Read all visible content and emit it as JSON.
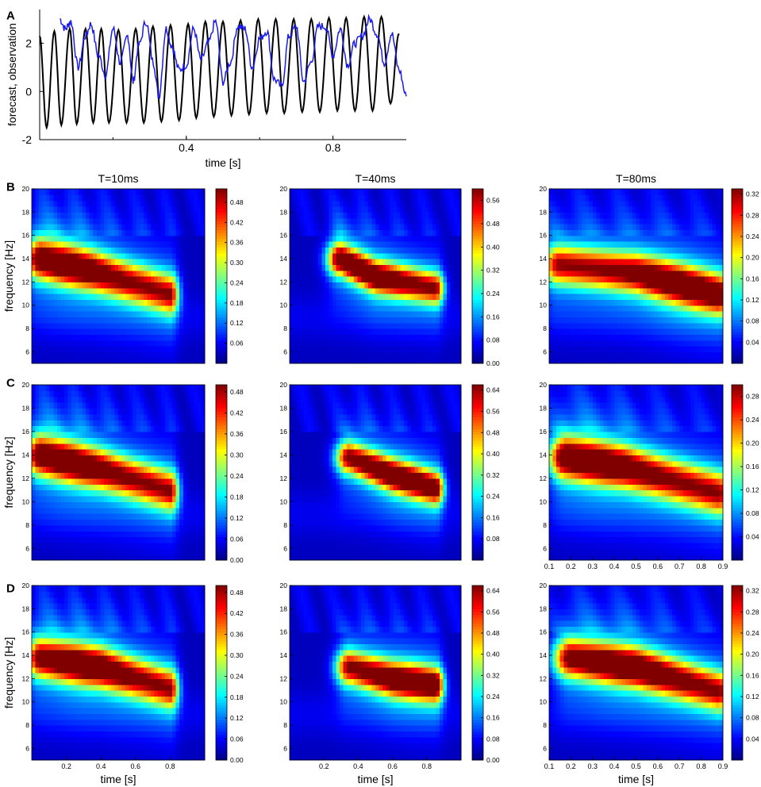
{
  "panel_letters": [
    "A",
    "B",
    "C",
    "D"
  ],
  "colors": {
    "forecast": "#000000",
    "observation": "#1a1aee"
  },
  "chart_data": [
    {
      "id": "A",
      "type": "line",
      "xlabel": "time [s]",
      "ylabel": "forecast, observation",
      "xlim": [
        0.0,
        1.0
      ],
      "ylim": [
        -2,
        3.4
      ],
      "xticks": [
        0.4,
        0.8
      ],
      "xtick_labels": [
        "0.4",
        "0.8"
      ],
      "yticks": [
        -2,
        0,
        2
      ],
      "ytick_labels": [
        "-2",
        "0",
        "2"
      ],
      "grid": false,
      "series": [
        {
          "role": "forecast",
          "color": "#000000",
          "x": [
            0.0,
            0.019,
            0.04,
            0.059,
            0.082,
            0.101,
            0.125,
            0.146,
            0.168,
            0.189,
            0.215,
            0.237,
            0.262,
            0.284,
            0.309,
            0.332,
            0.357,
            0.38,
            0.405,
            0.427,
            0.452,
            0.475,
            0.5,
            0.523,
            0.548,
            0.571,
            0.596,
            0.619,
            0.644,
            0.667,
            0.693,
            0.716,
            0.741,
            0.764,
            0.789,
            0.812,
            0.836,
            0.86,
            0.885,
            0.908,
            0.932,
            0.957,
            0.98
          ],
          "y": [
            2.3,
            -1.5,
            2.5,
            -1.4,
            2.6,
            -1.35,
            2.6,
            -1.3,
            2.6,
            -1.3,
            2.55,
            -1.3,
            2.6,
            -1.3,
            2.7,
            -1.25,
            2.75,
            -1.2,
            2.8,
            -1.1,
            2.9,
            -1.05,
            2.9,
            -1.0,
            2.95,
            -0.95,
            3.0,
            -0.9,
            3.0,
            -0.9,
            3.0,
            -0.85,
            3.0,
            -0.85,
            3.05,
            -0.8,
            3.05,
            -0.8,
            3.1,
            -0.8,
            3.1,
            -0.5,
            2.4
          ]
        },
        {
          "role": "observation",
          "color": "#1a1aee",
          "x": [
            0.055,
            0.07,
            0.085,
            0.105,
            0.125,
            0.14,
            0.16,
            0.18,
            0.2,
            0.22,
            0.24,
            0.255,
            0.27,
            0.29,
            0.31,
            0.325,
            0.345,
            0.36,
            0.38,
            0.4,
            0.42,
            0.44,
            0.46,
            0.48,
            0.5,
            0.52,
            0.54,
            0.56,
            0.58,
            0.6,
            0.62,
            0.64,
            0.66,
            0.68,
            0.7,
            0.72,
            0.74,
            0.76,
            0.78,
            0.8,
            0.82,
            0.84,
            0.86,
            0.88,
            0.9,
            0.92,
            0.94,
            0.96,
            0.98,
            1.0
          ],
          "y": [
            3.0,
            2.6,
            2.9,
            1.0,
            2.3,
            2.8,
            1.5,
            0.7,
            2.6,
            1.2,
            2.3,
            0.4,
            1.9,
            2.9,
            1.2,
            -0.2,
            2.6,
            1.9,
            0.9,
            1.1,
            2.6,
            1.3,
            2.0,
            2.9,
            0.4,
            1.2,
            2.7,
            2.6,
            1.0,
            2.2,
            2.5,
            0.5,
            0.2,
            2.3,
            2.7,
            0.4,
            1.2,
            2.7,
            2.7,
            1.5,
            2.6,
            1.1,
            2.0,
            2.3,
            3.0,
            2.4,
            1.2,
            2.4,
            0.9,
            -0.2
          ]
        }
      ]
    },
    {
      "id": "B1",
      "row": "B",
      "type": "heatmap",
      "title": "T=10ms",
      "ylabel": "frequency [Hz]",
      "xlabel": "",
      "xlim": [
        0.0,
        1.0
      ],
      "ylim": [
        5,
        20
      ],
      "yticks": [
        6,
        8,
        10,
        12,
        14,
        16,
        18,
        20
      ],
      "xticks": [],
      "xtick_labels": [],
      "colorbar_ticks": [
        "0.06",
        "0.12",
        "0.18",
        "0.24",
        "0.30",
        "0.36",
        "0.42",
        "0.48"
      ],
      "zmax": 0.52,
      "ridge": [
        [
          0.05,
          14.0
        ],
        [
          0.35,
          13.0
        ],
        [
          0.8,
          11.0
        ]
      ],
      "ridge_width": 1.6,
      "peak_at": 0.2
    },
    {
      "id": "B2",
      "row": "B",
      "type": "heatmap",
      "title": "T=40ms",
      "xlabel": "",
      "xlim": [
        0.0,
        1.0
      ],
      "ylim": [
        5,
        20
      ],
      "yticks": [
        6,
        8,
        10,
        12,
        14,
        16,
        18,
        20
      ],
      "xticks": [],
      "xtick_labels": [],
      "colorbar_ticks": [
        "0.00",
        "0.08",
        "0.16",
        "0.24",
        "0.32",
        "0.40",
        "0.48",
        "0.56"
      ],
      "zmax": 0.6,
      "ridge": [
        [
          0.3,
          14.0
        ],
        [
          0.5,
          12.5
        ],
        [
          0.85,
          11.5
        ]
      ],
      "ridge_width": 1.3,
      "peak_at": 0.45
    },
    {
      "id": "B3",
      "row": "B",
      "type": "heatmap",
      "title": "T=80ms",
      "xlabel": "",
      "xlim": [
        0.1,
        0.9
      ],
      "ylim": [
        5,
        20
      ],
      "yticks": [
        6,
        8,
        10,
        12,
        14,
        16,
        18,
        20
      ],
      "xticks": [],
      "xtick_labels": [],
      "colorbar_ticks": [
        "0.04",
        "0.08",
        "0.12",
        "0.16",
        "0.20",
        "0.24",
        "0.28",
        "0.32"
      ],
      "zmax": 0.33,
      "ridge": [
        [
          0.15,
          13.5
        ],
        [
          0.5,
          12.8
        ],
        [
          0.88,
          11.0
        ]
      ],
      "ridge_width": 1.6,
      "peak_at": 0.72
    },
    {
      "id": "C1",
      "row": "C",
      "type": "heatmap",
      "ylabel": "frequency [Hz]",
      "xlabel": "",
      "xlim": [
        0.0,
        1.0
      ],
      "ylim": [
        5,
        20
      ],
      "yticks": [
        6,
        8,
        10,
        12,
        14,
        16,
        18,
        20
      ],
      "xticks": [],
      "xtick_labels": [],
      "colorbar_ticks": [
        "0.00",
        "0.06",
        "0.12",
        "0.18",
        "0.24",
        "0.30",
        "0.36",
        "0.42",
        "0.48"
      ],
      "zmax": 0.5,
      "ridge": [
        [
          0.05,
          14.0
        ],
        [
          0.4,
          12.8
        ],
        [
          0.8,
          11.0
        ]
      ],
      "ridge_width": 1.6,
      "peak_at": 0.2
    },
    {
      "id": "C2",
      "row": "C",
      "type": "heatmap",
      "xlabel": "",
      "xlim": [
        0.0,
        1.0
      ],
      "ylim": [
        5,
        20
      ],
      "yticks": [
        6,
        8,
        10,
        12,
        14,
        16,
        18,
        20
      ],
      "xticks": [],
      "xtick_labels": [],
      "colorbar_ticks": [
        "0.08",
        "0.16",
        "0.24",
        "0.32",
        "0.40",
        "0.48",
        "0.56",
        "0.64"
      ],
      "zmax": 0.66,
      "ridge": [
        [
          0.35,
          13.8
        ],
        [
          0.6,
          12.3
        ],
        [
          0.85,
          11.2
        ]
      ],
      "ridge_width": 1.3,
      "peak_at": 0.65
    },
    {
      "id": "C3",
      "row": "C",
      "type": "heatmap",
      "xlabel": "",
      "xlim": [
        0.1,
        0.9
      ],
      "ylim": [
        5,
        20
      ],
      "yticks": [
        6,
        8,
        10,
        12,
        14,
        16,
        18,
        20
      ],
      "xticks": [
        0.1,
        0.2,
        0.3,
        0.4,
        0.5,
        0.6,
        0.7,
        0.8,
        0.9
      ],
      "xtick_labels": [
        "0.1",
        "0.2",
        "0.3",
        "0.4",
        "0.5",
        "0.6",
        "0.7",
        "0.8",
        "0.9"
      ],
      "colorbar_ticks": [
        "0.04",
        "0.08",
        "0.12",
        "0.16",
        "0.20",
        "0.24",
        "0.28"
      ],
      "zmax": 0.3,
      "ridge": [
        [
          0.18,
          13.8
        ],
        [
          0.45,
          13.0
        ],
        [
          0.88,
          10.8
        ]
      ],
      "ridge_width": 1.7,
      "peak_at": 0.3
    },
    {
      "id": "D1",
      "row": "D",
      "type": "heatmap",
      "ylabel": "frequency [Hz]",
      "xlabel": "time [s]",
      "xlim": [
        0.0,
        1.0
      ],
      "ylim": [
        5,
        20
      ],
      "yticks": [
        6,
        8,
        10,
        12,
        14,
        16,
        18,
        20
      ],
      "xticks": [
        0.2,
        0.4,
        0.6,
        0.8
      ],
      "xtick_labels": [
        "0.2",
        "0.4",
        "0.6",
        "0.8"
      ],
      "colorbar_ticks": [
        "0.00",
        "0.06",
        "0.12",
        "0.18",
        "0.24",
        "0.30",
        "0.36",
        "0.42",
        "0.48"
      ],
      "zmax": 0.5,
      "ridge": [
        [
          0.05,
          13.8
        ],
        [
          0.4,
          13.0
        ],
        [
          0.8,
          11.2
        ]
      ],
      "ridge_width": 1.6,
      "peak_at": 0.3
    },
    {
      "id": "D2",
      "row": "D",
      "type": "heatmap",
      "xlabel": "time [s]",
      "xlim": [
        0.0,
        1.0
      ],
      "ylim": [
        5,
        20
      ],
      "yticks": [
        6,
        8,
        10,
        12,
        14,
        16,
        18,
        20
      ],
      "xticks": [
        0.2,
        0.4,
        0.6,
        0.8
      ],
      "xtick_labels": [
        "0.2",
        "0.4",
        "0.6",
        "0.8"
      ],
      "colorbar_ticks": [
        "0.00",
        "0.08",
        "0.16",
        "0.24",
        "0.32",
        "0.40",
        "0.48",
        "0.56",
        "0.64"
      ],
      "zmax": 0.66,
      "ridge": [
        [
          0.35,
          13.0
        ],
        [
          0.6,
          12.0
        ],
        [
          0.85,
          11.5
        ]
      ],
      "ridge_width": 1.4,
      "peak_at": 0.7
    },
    {
      "id": "D3",
      "row": "D",
      "type": "heatmap",
      "xlabel": "time [s]",
      "xlim": [
        0.1,
        0.9
      ],
      "ylim": [
        5,
        20
      ],
      "yticks": [
        6,
        8,
        10,
        12,
        14,
        16,
        18,
        20
      ],
      "xticks": [
        0.1,
        0.2,
        0.3,
        0.4,
        0.5,
        0.6,
        0.7,
        0.8,
        0.9
      ],
      "xtick_labels": [
        "0.1",
        "0.2",
        "0.3",
        "0.4",
        "0.5",
        "0.6",
        "0.7",
        "0.8",
        "0.9"
      ],
      "colorbar_ticks": [
        "0.04",
        "0.08",
        "0.12",
        "0.16",
        "0.20",
        "0.24",
        "0.28",
        "0.32"
      ],
      "zmax": 0.33,
      "ridge": [
        [
          0.2,
          13.8
        ],
        [
          0.5,
          13.0
        ],
        [
          0.88,
          11.0
        ]
      ],
      "ridge_width": 1.6,
      "peak_at": 0.45
    }
  ]
}
